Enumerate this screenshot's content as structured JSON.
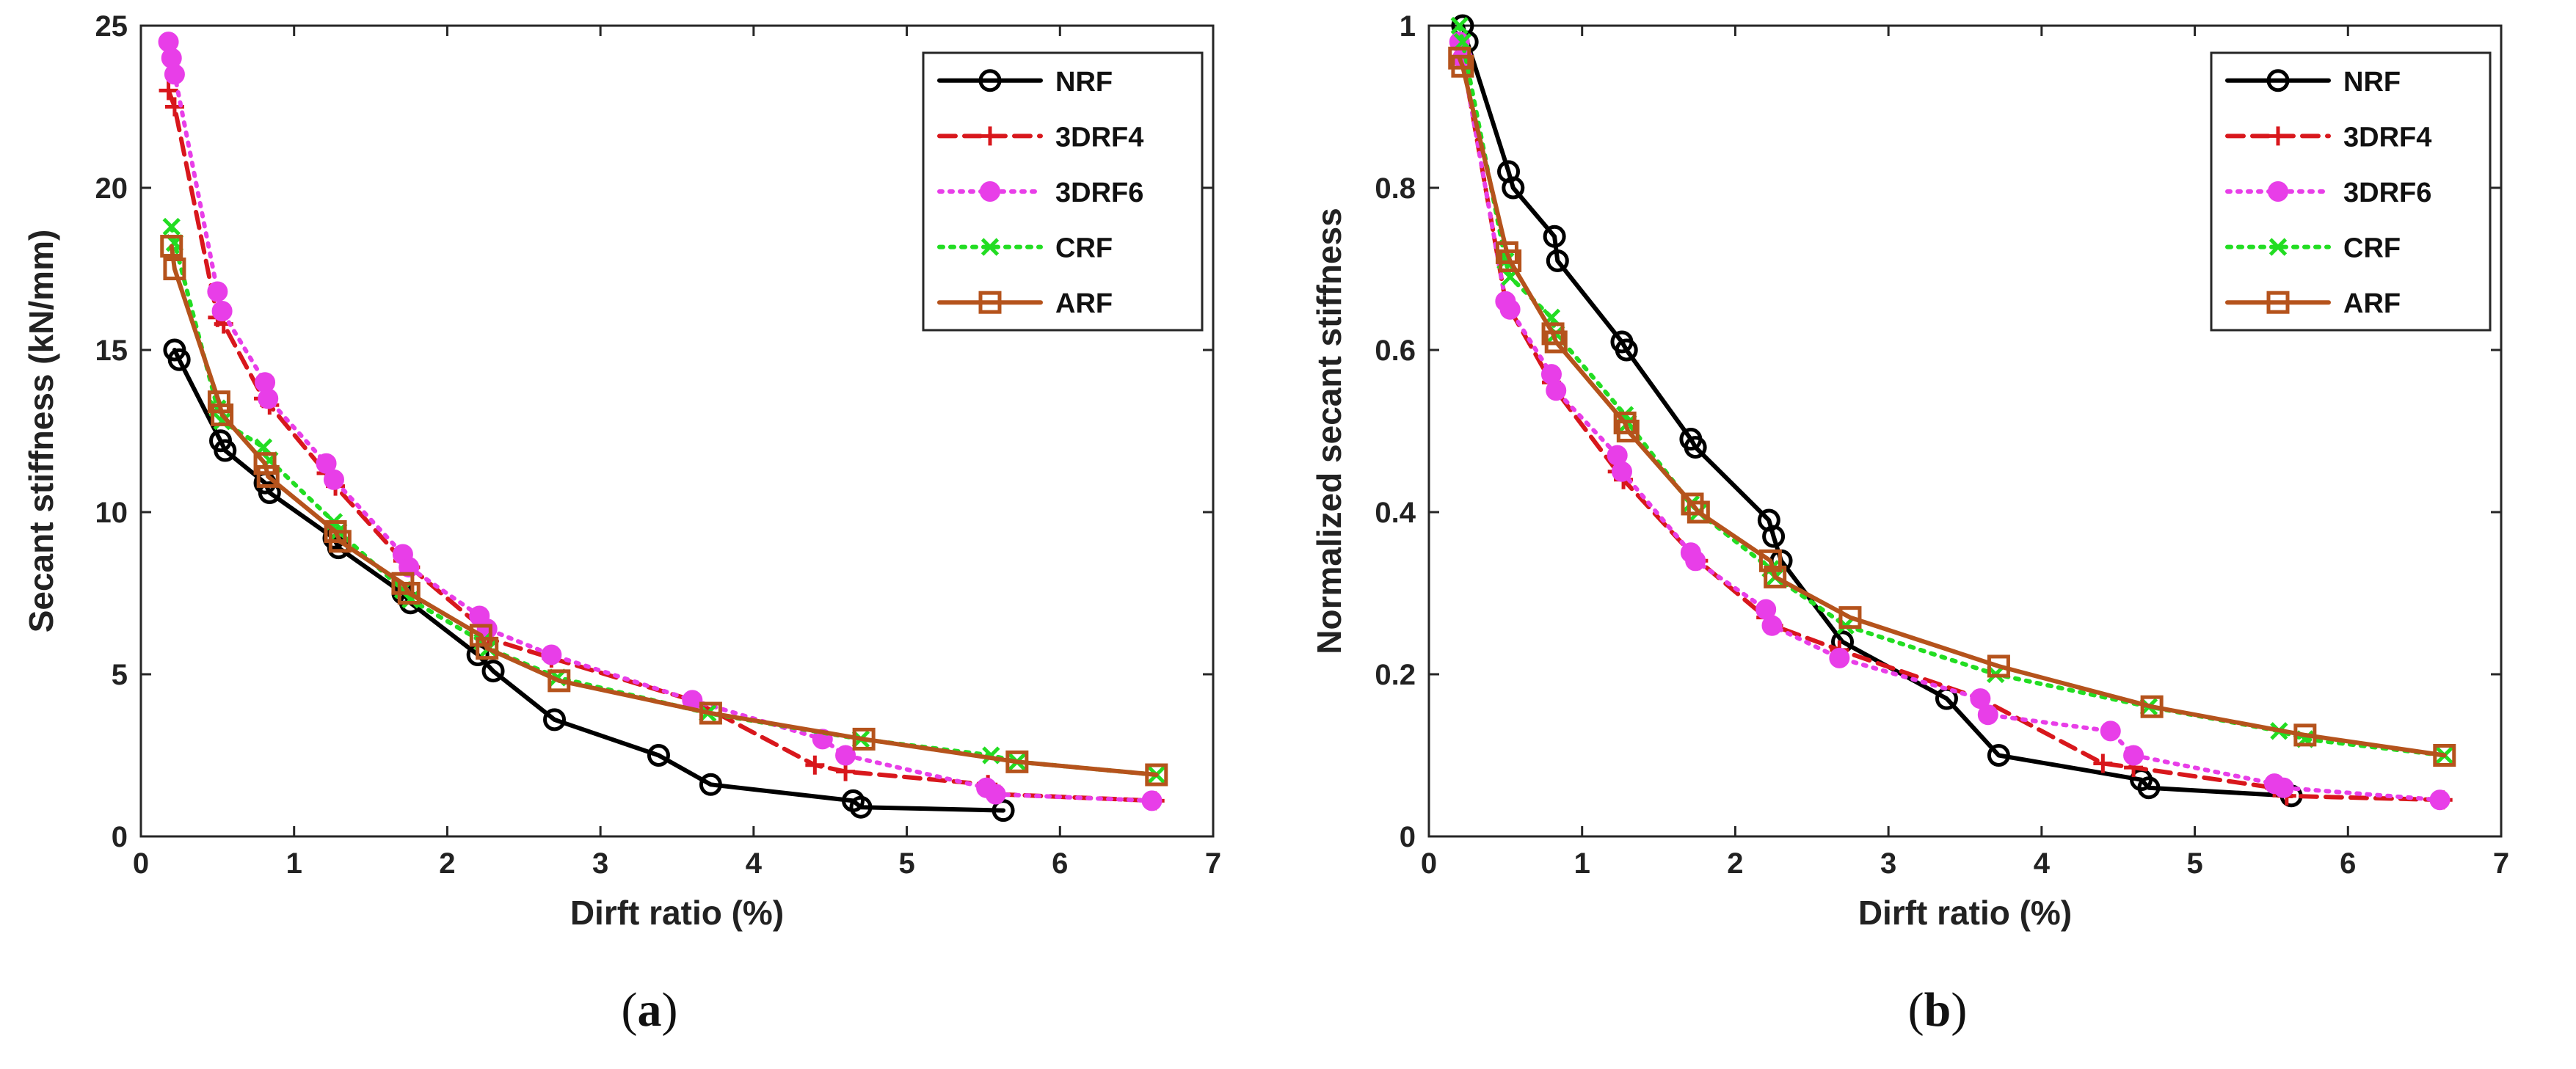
{
  "chart_data": [
    {
      "type": "line",
      "caption_open": "(",
      "caption_letter": "a",
      "caption_close": ")",
      "xlabel": "Dirft ratio (%)",
      "ylabel": "Secant stiffness (kN/mm)",
      "xlim": [
        0,
        7
      ],
      "ylim": [
        0,
        25
      ],
      "xticks": [
        "0",
        "1",
        "2",
        "3",
        "4",
        "5",
        "6",
        "7"
      ],
      "yticks": [
        "0",
        "5",
        "10",
        "15",
        "20",
        "25"
      ],
      "legend": "top-right",
      "series": [
        {
          "name": "NRF",
          "color": "#000000",
          "dash": "",
          "marker": "circle",
          "x": [
            0.22,
            0.25,
            0.52,
            0.55,
            0.81,
            0.84,
            1.26,
            1.29,
            1.71,
            1.76,
            2.2,
            2.3,
            2.7,
            3.38,
            3.72,
            4.65,
            4.7,
            5.63
          ],
          "y": [
            15.0,
            14.7,
            12.2,
            11.9,
            10.9,
            10.6,
            9.2,
            8.9,
            7.5,
            7.2,
            5.6,
            5.1,
            3.6,
            2.5,
            1.6,
            1.1,
            0.9,
            0.8
          ]
        },
        {
          "name": "3DRF4",
          "color": "#d8171c",
          "dash": "22,12",
          "marker": "plus",
          "x": [
            0.18,
            0.22,
            0.5,
            0.54,
            0.8,
            0.84,
            1.21,
            1.27,
            1.71,
            1.76,
            2.21,
            2.27,
            2.68,
            3.6,
            4.4,
            4.6,
            5.53,
            5.6,
            6.62
          ],
          "y": [
            23.0,
            22.5,
            16.0,
            15.8,
            13.5,
            13.3,
            11.2,
            10.8,
            8.5,
            8.3,
            6.5,
            6.1,
            5.5,
            4.2,
            2.2,
            2.0,
            1.6,
            1.3,
            1.1
          ]
        },
        {
          "name": "3DRF6",
          "color": "#e83ee8",
          "dash": "4,10",
          "marker": "dot",
          "x": [
            0.18,
            0.2,
            0.22,
            0.5,
            0.53,
            0.81,
            0.83,
            1.21,
            1.26,
            1.71,
            1.75,
            2.21,
            2.26,
            2.68,
            3.6,
            4.45,
            4.6,
            5.52,
            5.58,
            6.6
          ],
          "y": [
            24.5,
            24.0,
            23.5,
            16.8,
            16.2,
            14.0,
            13.5,
            11.5,
            11.0,
            8.7,
            8.3,
            6.8,
            6.4,
            5.6,
            4.2,
            3.0,
            2.5,
            1.5,
            1.3,
            1.1
          ]
        },
        {
          "name": "CRF",
          "color": "#22dd22",
          "dash": "5,10",
          "marker": "x",
          "x": [
            0.2,
            0.22,
            0.5,
            0.53,
            0.8,
            0.84,
            1.26,
            1.29,
            1.71,
            1.76,
            2.23,
            2.27,
            2.72,
            3.7,
            4.7,
            5.55,
            5.72,
            6.63
          ],
          "y": [
            18.8,
            18.3,
            13.2,
            12.8,
            12.0,
            11.6,
            9.7,
            9.4,
            7.6,
            7.3,
            6.0,
            5.8,
            4.9,
            3.8,
            3.0,
            2.5,
            2.3,
            1.9
          ]
        },
        {
          "name": "ARF",
          "color": "#b5531c",
          "dash": "",
          "marker": "square",
          "x": [
            0.2,
            0.22,
            0.51,
            0.53,
            0.81,
            0.83,
            1.27,
            1.3,
            1.71,
            1.75,
            2.22,
            2.26,
            2.73,
            3.72,
            4.72,
            5.72,
            6.63
          ],
          "y": [
            18.2,
            17.5,
            13.4,
            13.0,
            11.5,
            11.1,
            9.4,
            9.1,
            7.8,
            7.5,
            6.2,
            5.8,
            4.8,
            3.8,
            3.0,
            2.3,
            1.9
          ]
        }
      ]
    },
    {
      "type": "line",
      "caption_open": "(",
      "caption_letter": "b",
      "caption_close": ")",
      "xlabel": "Dirft ratio (%)",
      "ylabel": "Normalized secant stiffness",
      "xlim": [
        0,
        7
      ],
      "ylim": [
        0,
        1
      ],
      "xticks": [
        "0",
        "1",
        "2",
        "3",
        "4",
        "5",
        "6",
        "7"
      ],
      "yticks": [
        "0",
        "0.2",
        "0.4",
        "0.6",
        "0.8",
        "1"
      ],
      "legend": "top-right",
      "series": [
        {
          "name": "NRF",
          "color": "#000000",
          "dash": "",
          "marker": "circle",
          "x": [
            0.22,
            0.25,
            0.52,
            0.55,
            0.82,
            0.84,
            1.26,
            1.29,
            1.71,
            1.74,
            2.22,
            2.25,
            2.3,
            2.7,
            3.38,
            3.72,
            4.65,
            4.7,
            5.63
          ],
          "y": [
            1.0,
            0.98,
            0.82,
            0.8,
            0.74,
            0.71,
            0.61,
            0.6,
            0.49,
            0.48,
            0.39,
            0.37,
            0.34,
            0.24,
            0.17,
            0.1,
            0.07,
            0.06,
            0.05
          ]
        },
        {
          "name": "3DRF4",
          "color": "#d8171c",
          "dash": "22,12",
          "marker": "plus",
          "x": [
            0.2,
            0.22,
            0.5,
            0.53,
            0.8,
            0.83,
            1.23,
            1.27,
            1.71,
            1.76,
            2.2,
            2.25,
            2.68,
            3.6,
            4.4,
            4.6,
            5.52,
            5.6,
            6.62
          ],
          "y": [
            0.98,
            0.96,
            0.66,
            0.65,
            0.56,
            0.55,
            0.45,
            0.44,
            0.35,
            0.34,
            0.27,
            0.26,
            0.23,
            0.17,
            0.09,
            0.085,
            0.06,
            0.05,
            0.045
          ]
        },
        {
          "name": "3DRF6",
          "color": "#e83ee8",
          "dash": "4,10",
          "marker": "dot",
          "x": [
            0.2,
            0.22,
            0.5,
            0.53,
            0.8,
            0.83,
            1.23,
            1.26,
            1.71,
            1.74,
            2.2,
            2.24,
            2.68,
            3.6,
            3.65,
            4.45,
            4.6,
            5.52,
            5.58,
            6.6
          ],
          "y": [
            0.98,
            0.96,
            0.66,
            0.65,
            0.57,
            0.55,
            0.47,
            0.45,
            0.35,
            0.34,
            0.28,
            0.26,
            0.22,
            0.17,
            0.15,
            0.13,
            0.1,
            0.065,
            0.06,
            0.045
          ]
        },
        {
          "name": "CRF",
          "color": "#22dd22",
          "dash": "5,10",
          "marker": "x",
          "x": [
            0.2,
            0.22,
            0.5,
            0.53,
            0.8,
            0.83,
            1.28,
            1.3,
            1.71,
            1.76,
            2.23,
            2.26,
            2.72,
            3.7,
            4.7,
            5.55,
            5.72,
            6.63
          ],
          "y": [
            1.0,
            0.98,
            0.71,
            0.69,
            0.64,
            0.62,
            0.52,
            0.51,
            0.41,
            0.4,
            0.33,
            0.32,
            0.26,
            0.2,
            0.16,
            0.13,
            0.12,
            0.1
          ]
        },
        {
          "name": "ARF",
          "color": "#b5531c",
          "dash": "",
          "marker": "square",
          "x": [
            0.2,
            0.22,
            0.51,
            0.53,
            0.81,
            0.83,
            1.28,
            1.3,
            1.72,
            1.76,
            2.23,
            2.26,
            2.75,
            3.72,
            4.72,
            5.72,
            6.63
          ],
          "y": [
            0.96,
            0.95,
            0.72,
            0.71,
            0.62,
            0.61,
            0.51,
            0.5,
            0.41,
            0.4,
            0.34,
            0.32,
            0.27,
            0.21,
            0.16,
            0.125,
            0.1
          ]
        }
      ]
    }
  ]
}
